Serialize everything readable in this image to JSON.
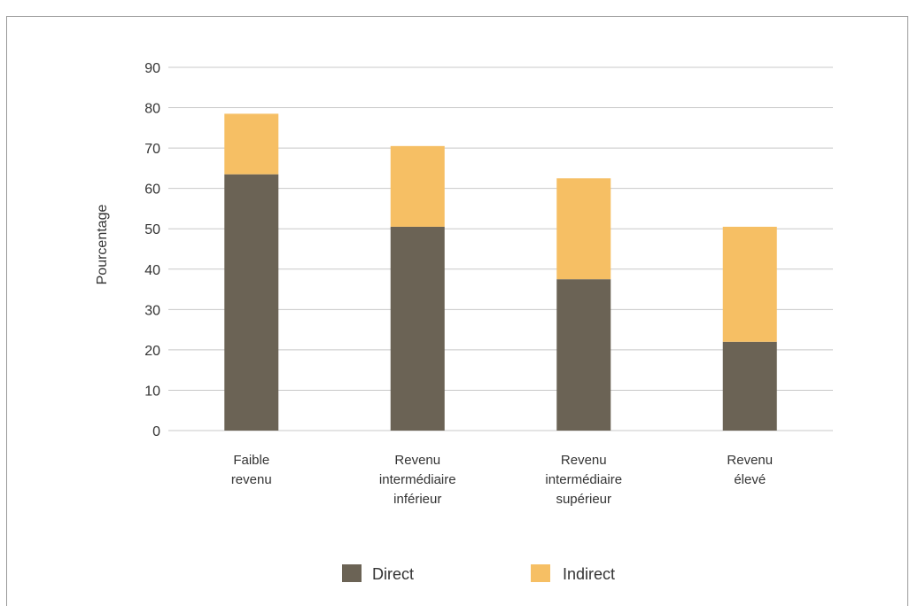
{
  "chart_data": {
    "type": "bar",
    "stacked": true,
    "title": "",
    "xlabel": "",
    "ylabel": "Pourcentage",
    "ylim": [
      0,
      90
    ],
    "yticks": [
      0,
      10,
      20,
      30,
      40,
      50,
      60,
      70,
      80,
      90
    ],
    "grid": true,
    "legend_position": "bottom",
    "categories": [
      [
        "Faible",
        "revenu"
      ],
      [
        "Revenu",
        "intermédiaire",
        "inférieur"
      ],
      [
        "Revenu",
        "intermédiaire",
        "supérieur"
      ],
      [
        "Revenu",
        "élevé"
      ]
    ],
    "series": [
      {
        "name": "Direct",
        "color": "#6b6355",
        "values": [
          63.5,
          50.5,
          37.5,
          22
        ]
      },
      {
        "name": "Indirect",
        "color": "#f6bf64",
        "values": [
          15,
          20,
          25,
          28.5
        ]
      }
    ]
  }
}
